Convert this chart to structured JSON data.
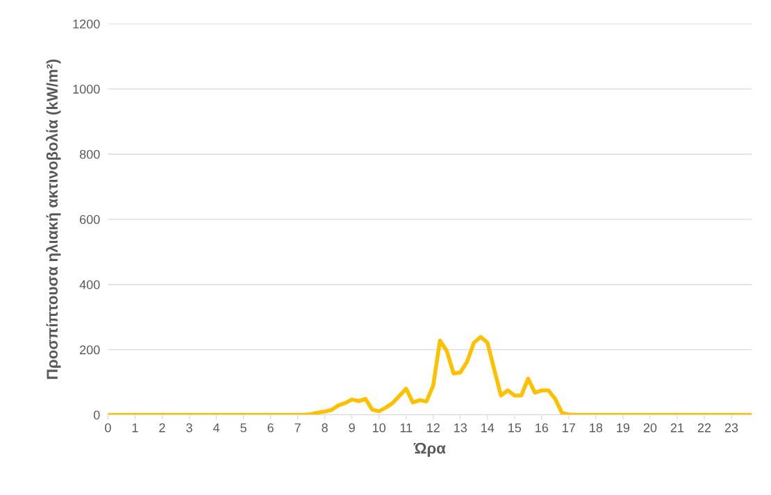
{
  "chart_data": {
    "type": "line",
    "xlabel": "Ώρα",
    "ylabel": "Προσπίπτουσα ηλιακή ακτινοβολία (kW/m²)",
    "x": [
      0,
      0.25,
      0.5,
      0.75,
      1,
      1.25,
      1.5,
      1.75,
      2,
      2.25,
      2.5,
      2.75,
      3,
      3.25,
      3.5,
      3.75,
      4,
      4.25,
      4.5,
      4.75,
      5,
      5.25,
      5.5,
      5.75,
      6,
      6.25,
      6.5,
      6.75,
      7,
      7.25,
      7.5,
      7.75,
      8,
      8.25,
      8.5,
      8.75,
      9,
      9.25,
      9.5,
      9.75,
      10,
      10.25,
      10.5,
      10.75,
      11,
      11.25,
      11.5,
      11.75,
      12,
      12.25,
      12.5,
      12.75,
      13,
      13.25,
      13.5,
      13.75,
      14,
      14.25,
      14.5,
      14.75,
      15,
      15.25,
      15.5,
      15.75,
      16,
      16.25,
      16.5,
      16.75,
      17,
      17.25,
      17.5,
      17.75,
      18,
      18.25,
      18.5,
      18.75,
      19,
      19.25,
      19.5,
      19.75,
      20,
      20.25,
      20.5,
      20.75,
      21,
      21.25,
      21.5,
      21.75,
      22,
      22.25,
      22.5,
      22.75,
      23,
      23.25,
      23.5,
      23.75
    ],
    "series": [
      {
        "color": "#ffc000",
        "values": [
          0,
          0,
          0,
          0,
          0,
          0,
          0,
          0,
          0,
          0,
          0,
          0,
          0,
          0,
          0,
          0,
          0,
          0,
          0,
          0,
          0,
          0,
          0,
          0,
          0,
          0,
          0,
          0,
          0,
          0,
          2,
          7,
          10,
          15,
          29,
          36,
          47,
          42,
          49,
          16,
          11,
          22,
          36,
          58,
          80,
          38,
          45,
          41,
          90,
          228,
          196,
          127,
          130,
          163,
          221,
          239,
          222,
          139,
          59,
          75,
          59,
          59,
          111,
          68,
          75,
          75,
          49,
          6,
          1,
          0,
          0,
          0,
          0,
          0,
          0,
          0,
          0,
          0,
          0,
          0,
          0,
          0,
          0,
          0,
          0,
          0,
          0,
          0,
          0,
          0,
          0,
          0,
          0,
          0,
          0,
          0
        ]
      }
    ],
    "xlim": [
      0,
      23.75
    ],
    "xticks": [
      0,
      1,
      2,
      3,
      4,
      5,
      6,
      7,
      8,
      9,
      10,
      11,
      12,
      13,
      14,
      15,
      16,
      17,
      18,
      19,
      20,
      21,
      22,
      23
    ],
    "ylim": [
      0,
      1200
    ],
    "yticks": [
      0,
      200,
      400,
      600,
      800,
      1000,
      1200
    ],
    "grid": "y",
    "line_style": "solid",
    "marker": "none"
  }
}
